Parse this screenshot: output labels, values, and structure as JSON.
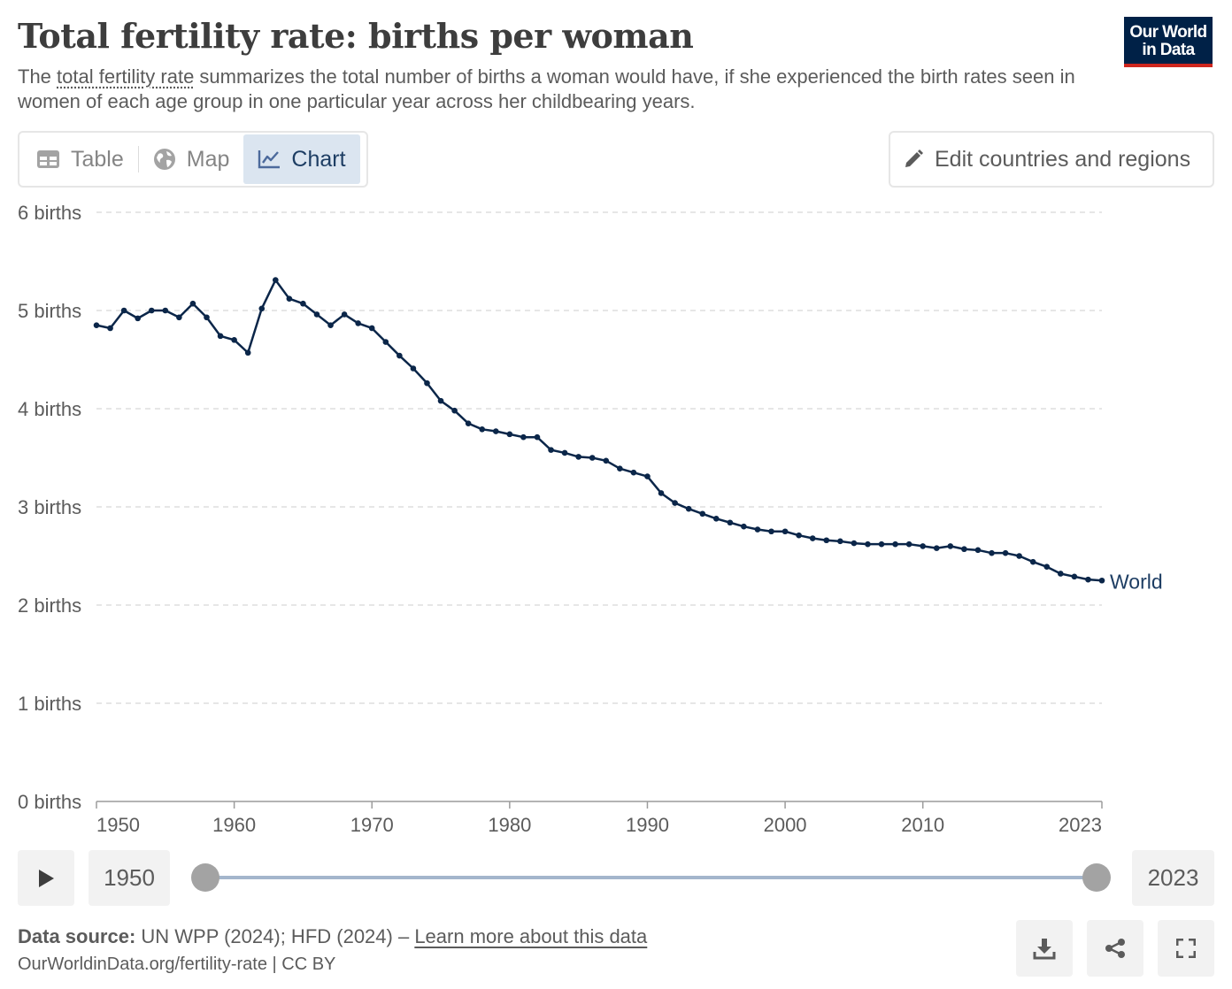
{
  "header": {
    "title": "Total fertility rate: births per woman",
    "subtitle_before": "The ",
    "subtitle_link": "total fertility rate",
    "subtitle_after": " summarizes the total number of births a woman would have, if she experienced the birth rates seen in women of each age group in one particular year across her childbearing years.",
    "logo_line1": "Our World",
    "logo_line2": "in Data"
  },
  "tabs": [
    {
      "label": "Table",
      "icon": "table-icon"
    },
    {
      "label": "Map",
      "icon": "globe-icon"
    },
    {
      "label": "Chart",
      "icon": "line-chart-icon",
      "active": true
    }
  ],
  "edit_button": {
    "label": "Edit countries and regions",
    "icon": "pencil-icon"
  },
  "timeline": {
    "start_year": "1950",
    "end_year": "2023",
    "play_icon": "play-icon"
  },
  "footer": {
    "source_label": "Data source:",
    "source_text": " UN WPP (2024); HFD (2024) – ",
    "learn_more": "Learn more about this data",
    "url_license": "OurWorldinData.org/fertility-rate | CC BY"
  },
  "actions": [
    {
      "name": "download-button",
      "icon": "download-icon"
    },
    {
      "name": "share-button",
      "icon": "share-icon"
    },
    {
      "name": "fullscreen-button",
      "icon": "fullscreen-icon"
    }
  ],
  "colors": {
    "line": "#0b2649",
    "accent": "#1d3d63",
    "logo_bg": "#002147",
    "logo_stripe": "#ce261e"
  },
  "chart_data": {
    "type": "line",
    "ylim": [
      0,
      6
    ],
    "xlim": [
      1950,
      2023
    ],
    "y_ticks": [
      {
        "value": 0,
        "label": "0 births"
      },
      {
        "value": 1,
        "label": "1 births"
      },
      {
        "value": 2,
        "label": "2 births"
      },
      {
        "value": 3,
        "label": "3 births"
      },
      {
        "value": 4,
        "label": "4 births"
      },
      {
        "value": 5,
        "label": "5 births"
      },
      {
        "value": 6,
        "label": "6 births"
      }
    ],
    "x_ticks": [
      {
        "value": 1950,
        "label": "1950"
      },
      {
        "value": 1960,
        "label": "1960"
      },
      {
        "value": 1970,
        "label": "1970"
      },
      {
        "value": 1980,
        "label": "1980"
      },
      {
        "value": 1990,
        "label": "1990"
      },
      {
        "value": 2000,
        "label": "2000"
      },
      {
        "value": 2010,
        "label": "2010"
      },
      {
        "value": 2023,
        "label": "2023"
      }
    ],
    "grid": true,
    "series": [
      {
        "name": "World",
        "x": [
          1950,
          1951,
          1952,
          1953,
          1954,
          1955,
          1956,
          1957,
          1958,
          1959,
          1960,
          1961,
          1962,
          1963,
          1964,
          1965,
          1966,
          1967,
          1968,
          1969,
          1970,
          1971,
          1972,
          1973,
          1974,
          1975,
          1976,
          1977,
          1978,
          1979,
          1980,
          1981,
          1982,
          1983,
          1984,
          1985,
          1986,
          1987,
          1988,
          1989,
          1990,
          1991,
          1992,
          1993,
          1994,
          1995,
          1996,
          1997,
          1998,
          1999,
          2000,
          2001,
          2002,
          2003,
          2004,
          2005,
          2006,
          2007,
          2008,
          2009,
          2010,
          2011,
          2012,
          2013,
          2014,
          2015,
          2016,
          2017,
          2018,
          2019,
          2020,
          2021,
          2022,
          2023
        ],
        "values": [
          4.85,
          4.82,
          5.0,
          4.92,
          5.0,
          5.0,
          4.93,
          5.07,
          4.93,
          4.74,
          4.7,
          4.57,
          5.02,
          5.31,
          5.12,
          5.07,
          4.96,
          4.85,
          4.96,
          4.87,
          4.82,
          4.68,
          4.54,
          4.41,
          4.26,
          4.08,
          3.98,
          3.85,
          3.79,
          3.77,
          3.74,
          3.71,
          3.71,
          3.58,
          3.55,
          3.51,
          3.5,
          3.47,
          3.39,
          3.35,
          3.31,
          3.14,
          3.04,
          2.98,
          2.93,
          2.88,
          2.84,
          2.8,
          2.77,
          2.75,
          2.75,
          2.71,
          2.68,
          2.66,
          2.65,
          2.63,
          2.62,
          2.62,
          2.62,
          2.62,
          2.6,
          2.58,
          2.6,
          2.57,
          2.56,
          2.53,
          2.53,
          2.5,
          2.44,
          2.39,
          2.32,
          2.29,
          2.26,
          2.25
        ]
      }
    ]
  }
}
